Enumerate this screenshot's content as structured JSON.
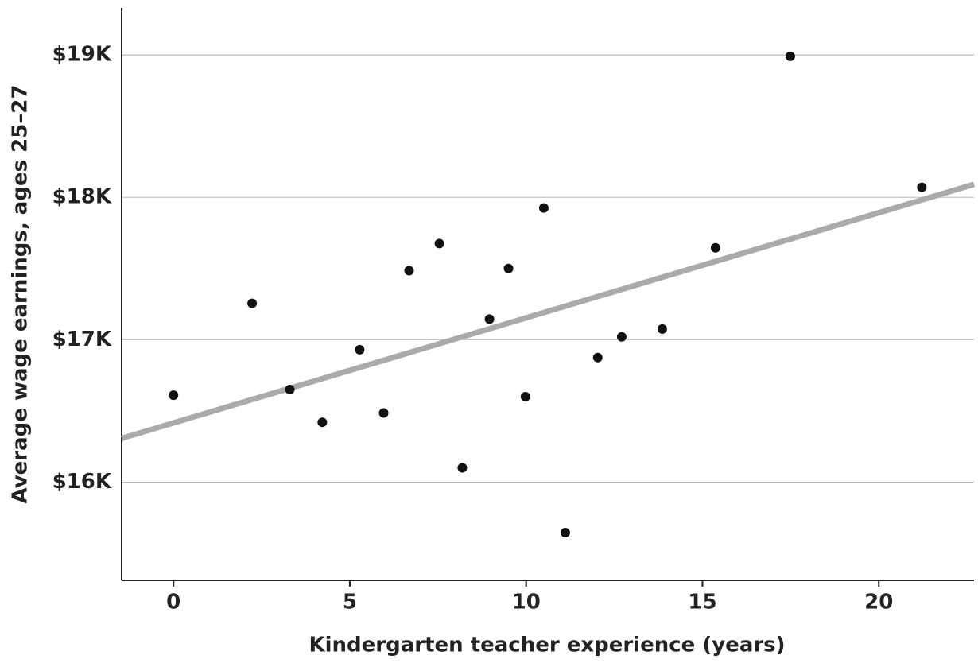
{
  "chart_data": {
    "type": "scatter",
    "x_label": "Kindergarten teacher experience (years)",
    "y_label": "Average wage earnings, ages 25–27",
    "x": [
      0,
      2.23,
      3.3,
      4.22,
      5.28,
      5.96,
      6.68,
      7.54,
      8.19,
      8.96,
      9.5,
      9.98,
      10.5,
      11.11,
      12.03,
      12.71,
      13.86,
      15.37,
      17.49,
      21.22
    ],
    "values": [
      16610,
      17255,
      16650,
      16420,
      16930,
      16485,
      17485,
      17675,
      16100,
      17145,
      17500,
      16600,
      17925,
      15645,
      16875,
      17020,
      17075,
      17645,
      18990,
      18070
    ],
    "color": "#111111",
    "trend": {
      "x": [
        -1.47,
        22.7
      ],
      "values": [
        16307,
        18091
      ],
      "color": "#aaaaaa"
    },
    "xlim": [
      -1.47,
      22.7
    ],
    "xticks": [
      0,
      5,
      10,
      15,
      20
    ],
    "ylim": [
      15310,
      19330
    ],
    "yticks": [
      {
        "value": 16000,
        "label": "$16K"
      },
      {
        "value": 17000,
        "label": "$17K"
      },
      {
        "value": 18000,
        "label": "$18K"
      },
      {
        "value": 19000,
        "label": "$19K"
      }
    ],
    "grid": true
  }
}
